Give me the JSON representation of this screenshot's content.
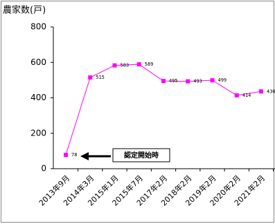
{
  "chart_data": {
    "type": "line",
    "y_label": "農家数(戸)",
    "categories": [
      "2013年9月",
      "2014年3月",
      "2015年1月",
      "2015年7月",
      "2017年2月",
      "2018年2月",
      "2019年2月",
      "2020年2月",
      "2021年2月"
    ],
    "series": [
      {
        "name": "農家数",
        "color": "#ff00ff",
        "values": [
          78,
          515,
          583,
          589,
          495,
          493,
          499,
          414,
          436
        ]
      }
    ],
    "ylim": [
      0,
      800
    ],
    "yticks": [
      0,
      200,
      400,
      600,
      800
    ],
    "annotation": "認定開始時",
    "grid": false
  }
}
